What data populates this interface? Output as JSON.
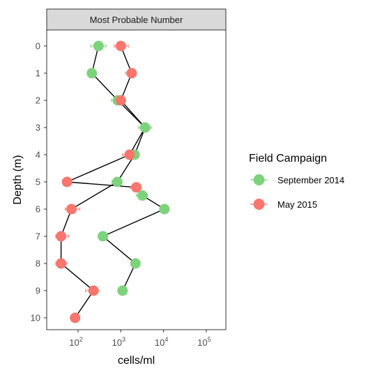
{
  "chart_data": {
    "type": "scatter",
    "title": "Most Probable Number",
    "xlabel": "cells/ml",
    "ylabel": "Depth (m)",
    "x_scale": "log10",
    "xlim": [
      20,
      200000
    ],
    "x_ticks": [
      100,
      1000,
      10000,
      100000
    ],
    "x_tick_labels": [
      {
        "base": "10",
        "exp": "2"
      },
      {
        "base": "10",
        "exp": "3"
      },
      {
        "base": "10",
        "exp": "4"
      },
      {
        "base": "10",
        "exp": "5"
      }
    ],
    "y_reversed": true,
    "ylim": [
      -0.5,
      10.5
    ],
    "y_ticks": [
      0,
      1,
      2,
      3,
      4,
      5,
      6,
      7,
      8,
      9,
      10
    ],
    "grid": false,
    "legend_position": "right",
    "legend_title": "Field Campaign",
    "series": [
      {
        "name": "September 2014",
        "color": "#7CD37C",
        "points": [
          {
            "depth": 0,
            "value": 300,
            "err": [
              200,
              450
            ]
          },
          {
            "depth": 1,
            "value": 210,
            "err": [
              170,
              260
            ]
          },
          {
            "depth": 2,
            "value": 850,
            "err": [
              600,
              1100
            ]
          },
          {
            "depth": 3,
            "value": 3700,
            "err": [
              2600,
              5200
            ]
          },
          {
            "depth": 4,
            "value": 2100,
            "err": [
              1600,
              2700
            ]
          },
          {
            "depth": 5,
            "value": 830,
            "err": [
              620,
              1000
            ]
          },
          {
            "depth": 5.5,
            "value": 3200,
            "err": [
              2300,
              4200
            ]
          },
          {
            "depth": 6,
            "value": 10500,
            "err": [
              9000,
              12000
            ]
          },
          {
            "depth": 7,
            "value": 380,
            "err": [
              300,
              480
            ]
          },
          {
            "depth": 8,
            "value": 2200,
            "err": [
              1800,
              2600
            ]
          },
          {
            "depth": 9,
            "value": 1100,
            "err": [
              900,
              1300
            ]
          }
        ]
      },
      {
        "name": "May 2015",
        "color": "#F8766D",
        "points": [
          {
            "depth": 0,
            "value": 1000,
            "err": [
              700,
              1500
            ]
          },
          {
            "depth": 1,
            "value": 1800,
            "err": [
              1300,
              2300
            ]
          },
          {
            "depth": 2,
            "value": 1000,
            "err": [
              800,
              1200
            ]
          },
          {
            "depth": 4,
            "value": 1600,
            "err": [
              1100,
              2100
            ]
          },
          {
            "depth": 5,
            "value": 55,
            "err": [
              45,
              65
            ]
          },
          {
            "depth": 5.2,
            "value": 2300,
            "err": [
              1700,
              3000
            ]
          },
          {
            "depth": 6,
            "value": 70,
            "err": [
              50,
              110
            ]
          },
          {
            "depth": 7,
            "value": 40,
            "err": [
              30,
              60
            ]
          },
          {
            "depth": 8,
            "value": 40,
            "err": [
              30,
              55
            ]
          },
          {
            "depth": 9,
            "value": 230,
            "err": [
              150,
              300
            ]
          },
          {
            "depth": 10,
            "value": 85,
            "err": [
              70,
              110
            ]
          }
        ]
      }
    ],
    "path": [
      {
        "depth": 0,
        "value": 300
      },
      {
        "depth": 1,
        "value": 210
      },
      {
        "depth": 2,
        "value": 850
      },
      {
        "depth": 3,
        "value": 3700
      },
      {
        "depth": 4,
        "value": 1600
      },
      {
        "depth": 5,
        "value": 55
      },
      {
        "depth": 5.2,
        "value": 2300
      },
      {
        "depth": 5.5,
        "value": 3200
      },
      {
        "depth": 6,
        "value": 10500
      },
      {
        "depth": 7,
        "value": 380
      },
      {
        "depth": 8,
        "value": 2200
      },
      {
        "depth": 9,
        "value": 1100
      }
    ],
    "path2": [
      {
        "depth": 0,
        "value": 1000
      },
      {
        "depth": 1,
        "value": 1800
      },
      {
        "depth": 2,
        "value": 1000
      },
      {
        "depth": 3,
        "value": 3700
      },
      {
        "depth": 4,
        "value": 2100
      },
      {
        "depth": 5,
        "value": 830
      },
      {
        "depth": 6,
        "value": 70
      },
      {
        "depth": 7,
        "value": 40
      },
      {
        "depth": 8,
        "value": 40
      },
      {
        "depth": 9,
        "value": 230
      },
      {
        "depth": 10,
        "value": 85
      }
    ]
  }
}
